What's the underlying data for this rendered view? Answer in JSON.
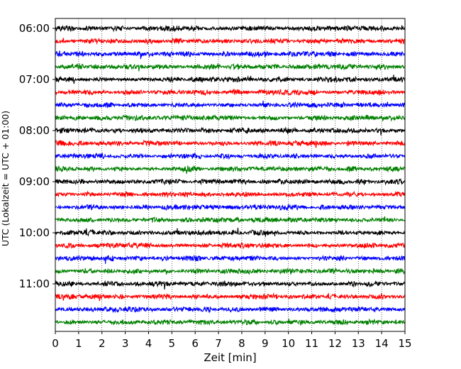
{
  "chart_data": {
    "type": "line",
    "title": "",
    "xlabel": "Zeit  [min]",
    "ylabel": "UTC (Lokalzeit = UTC + 01:00)",
    "xlim": [
      0,
      15
    ],
    "x_ticks": [
      "0",
      "1",
      "2",
      "3",
      "4",
      "5",
      "6",
      "7",
      "8",
      "9",
      "10",
      "11",
      "12",
      "13",
      "14",
      "15"
    ],
    "y_tick_labels": [
      "06:00",
      "07:00",
      "08:00",
      "09:00",
      "10:00",
      "11:00"
    ],
    "trace_interval_minutes": 15,
    "first_trace_utc": "06:00",
    "trace_count": 24,
    "color_cycle": [
      "#000000",
      "#ff0000",
      "#0000ff",
      "#008000"
    ],
    "grid": "vertical dotted at each minute",
    "legend": "none"
  }
}
